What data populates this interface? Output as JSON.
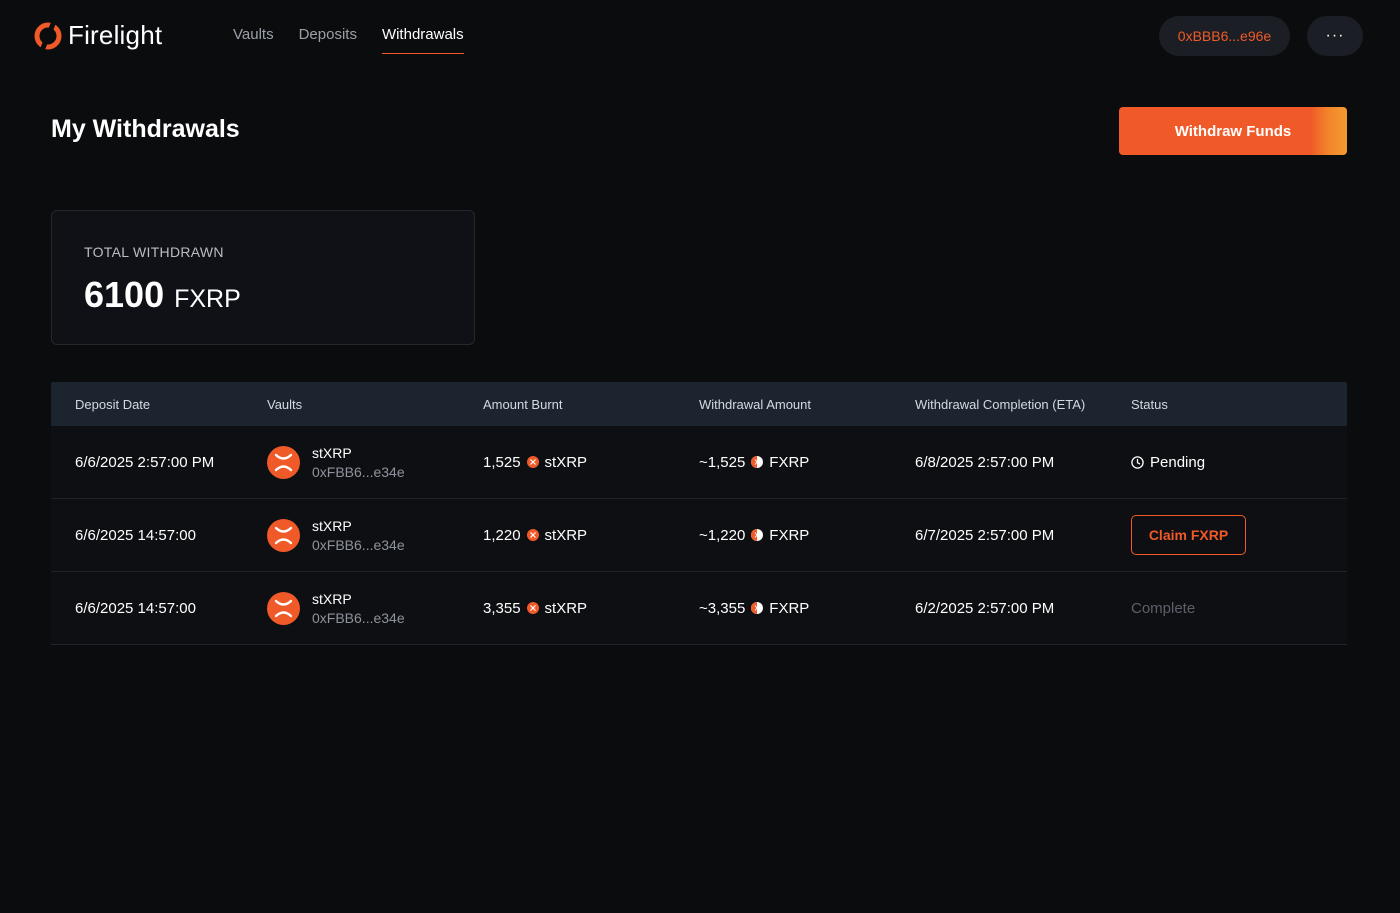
{
  "app": {
    "name": "Firelight",
    "accent_color": "#f05a28"
  },
  "nav": {
    "items": [
      {
        "label": "Vaults",
        "active": false
      },
      {
        "label": "Deposits",
        "active": false
      },
      {
        "label": "Withdrawals",
        "active": true
      }
    ],
    "wallet_address": "0xBBB6...e96e",
    "more_label": "···"
  },
  "header": {
    "title": "My Withdrawals",
    "action_label": "Withdraw Funds"
  },
  "stats": {
    "label": "TOTAL WITHDRAWN",
    "value": "6100",
    "unit": "FXRP"
  },
  "table": {
    "columns": [
      "Deposit Date",
      "Vaults",
      "Amount Burnt",
      "Withdrawal Amount",
      "Withdrawal Completion (ETA)",
      "Status"
    ],
    "rows": [
      {
        "deposit_date": "6/6/2025 2:57:00 PM",
        "vault_name": "stXRP",
        "vault_address": "0xFBB6...e34e",
        "amount_burnt": "1,525",
        "burnt_token": "stXRP",
        "withdrawal_amount": "~1,525",
        "withdrawal_token": "FXRP",
        "eta": "6/8/2025 2:57:00 PM",
        "status": "Pending",
        "status_type": "pending"
      },
      {
        "deposit_date": "6/6/2025 14:57:00",
        "vault_name": "stXRP",
        "vault_address": "0xFBB6...e34e",
        "amount_burnt": "1,220",
        "burnt_token": "stXRP",
        "withdrawal_amount": "~1,220",
        "withdrawal_token": "FXRP",
        "eta": "6/7/2025 2:57:00 PM",
        "status": "Claim FXRP",
        "status_type": "claim"
      },
      {
        "deposit_date": "6/6/2025 14:57:00",
        "vault_name": "stXRP",
        "vault_address": "0xFBB6...e34e",
        "amount_burnt": "3,355",
        "burnt_token": "stXRP",
        "withdrawal_amount": "~3,355",
        "withdrawal_token": "FXRP",
        "eta": "6/2/2025 2:57:00 PM",
        "status": "Complete",
        "status_type": "complete"
      }
    ]
  },
  "icons": {
    "logo": "flame-logo-icon",
    "vault": "xrp-coin-icon",
    "burnt_token": "stxrp-token-icon",
    "withdrawal_token": "fxrp-token-icon",
    "pending": "clock-icon"
  }
}
